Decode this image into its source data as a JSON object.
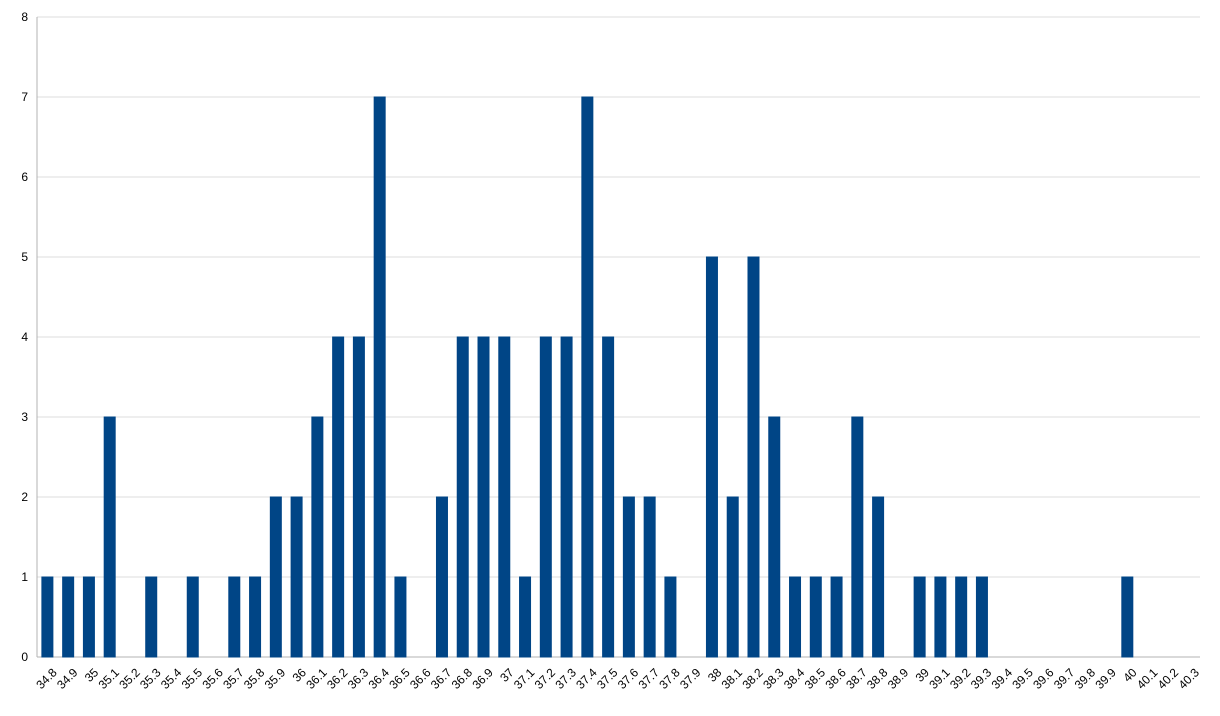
{
  "chart_data": {
    "type": "bar",
    "categories": [
      "34.8",
      "34.9",
      "35",
      "35.1",
      "35.2",
      "35.3",
      "35.4",
      "35.5",
      "35.6",
      "35.7",
      "35.8",
      "35.9",
      "36",
      "36.1",
      "36.2",
      "36.3",
      "36.4",
      "36.5",
      "36.6",
      "36.7",
      "36.8",
      "36.9",
      "37",
      "37.1",
      "37.2",
      "37.3",
      "37.4",
      "37.5",
      "37.6",
      "37.7",
      "37.8",
      "37.9",
      "38",
      "38.1",
      "38.2",
      "38.3",
      "38.4",
      "38.5",
      "38.6",
      "38.7",
      "38.8",
      "38.9",
      "39",
      "39.1",
      "39.2",
      "39.3",
      "39.4",
      "39.5",
      "39.6",
      "39.7",
      "39.8",
      "39.9",
      "40",
      "40.1",
      "40.2",
      "40.3"
    ],
    "values": [
      1,
      1,
      1,
      3,
      0,
      1,
      0,
      1,
      0,
      1,
      1,
      2,
      2,
      3,
      4,
      4,
      7,
      1,
      0,
      2,
      4,
      4,
      4,
      1,
      4,
      4,
      7,
      4,
      2,
      2,
      1,
      0,
      5,
      2,
      5,
      3,
      1,
      1,
      1,
      3,
      2,
      0,
      1,
      1,
      1,
      1,
      0,
      0,
      0,
      0,
      0,
      0,
      1,
      0,
      0,
      0
    ],
    "color": "#004586",
    "ylim": [
      0,
      8
    ],
    "yticks": [
      0,
      1,
      2,
      3,
      4,
      5,
      6,
      7,
      8
    ],
    "grid": true
  }
}
